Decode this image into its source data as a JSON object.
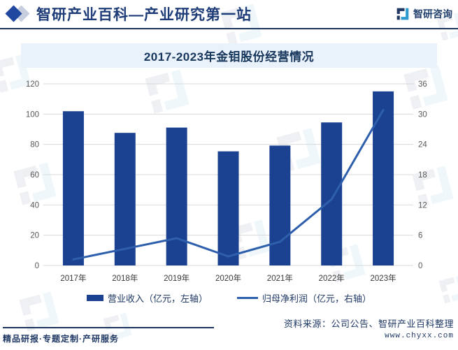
{
  "header": {
    "title": "智研产业百科—产业研究第一站",
    "brand_name": "智研咨询"
  },
  "chart_data": {
    "type": "bar",
    "combo": "bar+line",
    "title": "2017-2023年金钼股份经营情况",
    "categories": [
      "2017年",
      "2018年",
      "2019年",
      "2020年",
      "2021年",
      "2022年",
      "2023年"
    ],
    "series": [
      {
        "name": "营业收入（亿元，左轴）",
        "kind": "bar",
        "axis": "left",
        "color": "#1B4191",
        "values": [
          101.9,
          87.6,
          91.1,
          75.4,
          79.2,
          94.5,
          115.0
        ]
      },
      {
        "name": "归母净利润（亿元，右轴）",
        "kind": "line",
        "axis": "right",
        "color": "#2E5FAD",
        "values": [
          1.2,
          3.3,
          5.4,
          1.8,
          4.7,
          13.1,
          30.8
        ]
      }
    ],
    "left_axis": {
      "min": 0,
      "max": 120,
      "ticks": [
        0,
        20,
        40,
        60,
        80,
        100,
        120
      ]
    },
    "right_axis": {
      "min": 0,
      "max": 36,
      "ticks": [
        0,
        6,
        12,
        18,
        24,
        30,
        36
      ]
    },
    "grid": true,
    "legend_position": "bottom"
  },
  "footer": {
    "services": "精品研报·专题定制·产研服务",
    "source": "资料来源：公司公告、智研产业百科整理",
    "site": "www.chyxx.com"
  },
  "colors": {
    "header_navy": "#1E3C78",
    "rule_navy": "#1C355E",
    "title_band_bg": "#E9F1FA",
    "gridline": "#D9D9D9",
    "axis_label": "#595959",
    "x_label": "#3B3B3B",
    "bar_blue": "#1B4191",
    "line_blue": "#2E5FAD"
  }
}
